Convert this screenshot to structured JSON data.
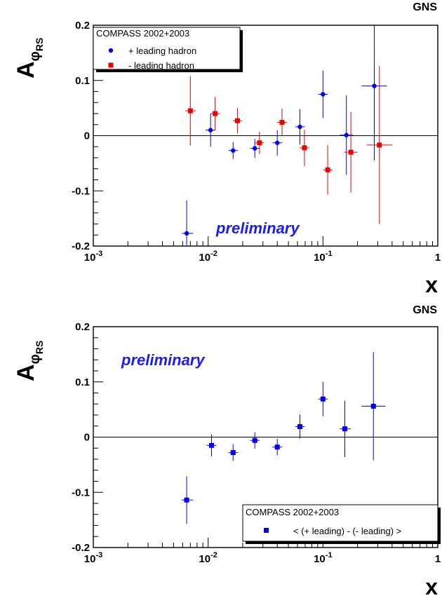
{
  "chart_data": [
    {
      "type": "scatter",
      "corner_label": "GNS",
      "xlabel": "x",
      "ylabel": {
        "main": "A",
        "sub": "φ",
        "subsub": "RS"
      },
      "xscale": "log",
      "xlim": [
        0.001,
        1
      ],
      "ylim": [
        -0.2,
        0.2
      ],
      "x_tick_labels": [
        {
          "value": 0.001,
          "base": "10",
          "exp": "-3"
        },
        {
          "value": 0.01,
          "base": "10",
          "exp": "-2"
        },
        {
          "value": 0.1,
          "base": "10",
          "exp": "-1"
        },
        {
          "value": 1,
          "base": "1",
          "exp": ""
        }
      ],
      "y_tick_labels": [
        {
          "value": -0.2,
          "text": "-0.2"
        },
        {
          "value": -0.1,
          "text": "-0.1"
        },
        {
          "value": 0,
          "text": "0"
        },
        {
          "value": 0.1,
          "text": "0.1"
        },
        {
          "value": 0.2,
          "text": "0.2"
        }
      ],
      "zero_line": true,
      "grid": false,
      "legend": {
        "title": "COMPASS 2002+2003",
        "position": "top-left"
      },
      "annotation": {
        "text": "preliminary",
        "color": "#1a1aff"
      },
      "series": [
        {
          "name": "+ leading hadron",
          "marker": "circle",
          "color": "#0000ee",
          "points": [
            {
              "x": 0.0065,
              "y": -0.177,
              "yerr": 0.06,
              "xlo": 0.0059,
              "xhi": 0.0074
            },
            {
              "x": 0.0105,
              "y": 0.01,
              "yerr": 0.03,
              "xlo": 0.0095,
              "xhi": 0.0116
            },
            {
              "x": 0.0165,
              "y": -0.027,
              "yerr": 0.015,
              "xlo": 0.015,
              "xhi": 0.0182
            },
            {
              "x": 0.0255,
              "y": -0.023,
              "yerr": 0.017,
              "xlo": 0.0232,
              "xhi": 0.0281
            },
            {
              "x": 0.04,
              "y": -0.013,
              "yerr": 0.023,
              "xlo": 0.0363,
              "xhi": 0.0441
            },
            {
              "x": 0.063,
              "y": 0.016,
              "yerr": 0.032,
              "xlo": 0.0573,
              "xhi": 0.0695
            },
            {
              "x": 0.1,
              "y": 0.075,
              "yerr": 0.043,
              "xlo": 0.0909,
              "xhi": 0.1103
            },
            {
              "x": 0.16,
              "y": 0.001,
              "yerr": 0.072,
              "xlo": 0.1398,
              "xhi": 0.1832
            },
            {
              "x": 0.28,
              "y": 0.09,
              "yerr": 0.135,
              "xlo": 0.217,
              "xhi": 0.361
            }
          ]
        },
        {
          "name": "- leading hadron",
          "marker": "square",
          "color": "#ee0000",
          "points": [
            {
              "x": 0.007,
              "y": 0.045,
              "yerr": 0.063,
              "xlo": 0.0063,
              "xhi": 0.0078
            },
            {
              "x": 0.0115,
              "y": 0.04,
              "yerr": 0.03,
              "xlo": 0.0105,
              "xhi": 0.0127
            },
            {
              "x": 0.018,
              "y": 0.027,
              "yerr": 0.023,
              "xlo": 0.0164,
              "xhi": 0.0198
            },
            {
              "x": 0.028,
              "y": -0.013,
              "yerr": 0.02,
              "xlo": 0.0255,
              "xhi": 0.0307
            },
            {
              "x": 0.044,
              "y": 0.024,
              "yerr": 0.025,
              "xlo": 0.04,
              "xhi": 0.0485
            },
            {
              "x": 0.069,
              "y": -0.022,
              "yerr": 0.033,
              "xlo": 0.0627,
              "xhi": 0.0761
            },
            {
              "x": 0.11,
              "y": -0.062,
              "yerr": 0.045,
              "xlo": 0.1,
              "xhi": 0.1213
            },
            {
              "x": 0.175,
              "y": -0.03,
              "yerr": 0.073,
              "xlo": 0.153,
              "xhi": 0.2
            },
            {
              "x": 0.31,
              "y": -0.017,
              "yerr": 0.143,
              "xlo": 0.24,
              "xhi": 0.4
            }
          ]
        }
      ]
    },
    {
      "type": "scatter",
      "corner_label": "GNS",
      "xlabel": "x",
      "ylabel": {
        "main": "A",
        "sub": "φ",
        "subsub": "RS"
      },
      "xscale": "log",
      "xlim": [
        0.001,
        1
      ],
      "ylim": [
        -0.2,
        0.2
      ],
      "x_tick_labels": [
        {
          "value": 0.001,
          "base": "10",
          "exp": "-3"
        },
        {
          "value": 0.01,
          "base": "10",
          "exp": "-2"
        },
        {
          "value": 0.1,
          "base": "10",
          "exp": "-1"
        },
        {
          "value": 1,
          "base": "1",
          "exp": ""
        }
      ],
      "y_tick_labels": [
        {
          "value": -0.2,
          "text": "-0.2"
        },
        {
          "value": -0.1,
          "text": "-0.1"
        },
        {
          "value": 0,
          "text": "0"
        },
        {
          "value": 0.1,
          "text": "0.1"
        },
        {
          "value": 0.2,
          "text": "0.2"
        }
      ],
      "zero_line": true,
      "grid": false,
      "legend": {
        "title": "COMPASS 2002+2003",
        "position": "bottom-right"
      },
      "annotation": {
        "text": "preliminary",
        "color": "#1a1aff"
      },
      "series": [
        {
          "name": "< (+ leading) - (- leading) >",
          "marker": "square",
          "color": "#0000ee",
          "points": [
            {
              "x": 0.0065,
              "y": -0.114,
              "yerr": 0.043,
              "xlo": 0.0059,
              "xhi": 0.0074
            },
            {
              "x": 0.0107,
              "y": -0.015,
              "yerr": 0.02,
              "xlo": 0.0097,
              "xhi": 0.0118
            },
            {
              "x": 0.0165,
              "y": -0.028,
              "yerr": 0.015,
              "xlo": 0.015,
              "xhi": 0.0182
            },
            {
              "x": 0.0255,
              "y": -0.006,
              "yerr": 0.015,
              "xlo": 0.0232,
              "xhi": 0.0281
            },
            {
              "x": 0.04,
              "y": -0.018,
              "yerr": 0.015,
              "xlo": 0.0363,
              "xhi": 0.0441
            },
            {
              "x": 0.063,
              "y": 0.019,
              "yerr": 0.022,
              "xlo": 0.0573,
              "xhi": 0.0695
            },
            {
              "x": 0.1,
              "y": 0.069,
              "yerr": 0.031,
              "xlo": 0.0909,
              "xhi": 0.1103
            },
            {
              "x": 0.155,
              "y": 0.015,
              "yerr": 0.051,
              "xlo": 0.1398,
              "xhi": 0.175
            },
            {
              "x": 0.275,
              "y": 0.056,
              "yerr": 0.098,
              "xlo": 0.217,
              "xhi": 0.35
            }
          ]
        }
      ]
    }
  ]
}
